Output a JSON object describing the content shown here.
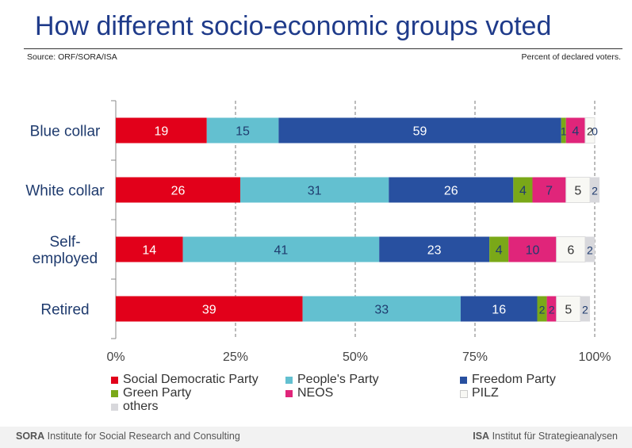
{
  "title": "How different socio-economic groups voted",
  "source": "Source: ORF/SORA/ISA",
  "note": "Percent of declared voters.",
  "footer": {
    "left_org": "SORA",
    "left_text": "Institute for Social Research and Consulting",
    "right_org": "ISA",
    "right_text": "Institut für Strategieanalysen"
  },
  "chart_data": {
    "type": "bar",
    "orientation": "horizontal",
    "stacked": true,
    "categories": [
      "Blue collar",
      "White collar",
      "Self-employed",
      "Retired"
    ],
    "category_lines": [
      [
        "Blue collar"
      ],
      [
        "White collar"
      ],
      [
        "Self-",
        "employed"
      ],
      [
        "Retired"
      ]
    ],
    "xlim": [
      0,
      100
    ],
    "xticks": [
      0,
      25,
      50,
      75,
      100
    ],
    "xtick_labels": [
      "0%",
      "25%",
      "50%",
      "75%",
      "100%"
    ],
    "legend_position": "bottom",
    "series": [
      {
        "name": "Social Democratic Party",
        "color": "#e2001a",
        "label_color": "#ffffff",
        "values": [
          19,
          26,
          14,
          39
        ]
      },
      {
        "name": "People's Party",
        "color": "#63c0d0",
        "label_color": "#1f3b6e",
        "values": [
          15,
          31,
          41,
          33
        ]
      },
      {
        "name": "Freedom Party",
        "color": "#2850a0",
        "label_color": "#ffffff",
        "values": [
          59,
          26,
          23,
          16
        ]
      },
      {
        "name": "Green Party",
        "color": "#7aa818",
        "label_color": "#1f3b6e",
        "values": [
          1,
          4,
          4,
          2
        ]
      },
      {
        "name": "NEOS",
        "color": "#e0257a",
        "label_color": "#1f3b6e",
        "values": [
          4,
          7,
          10,
          2
        ]
      },
      {
        "name": "PILZ",
        "color": "#f8f8f4",
        "label_color": "#333333",
        "values": [
          2,
          5,
          6,
          5
        ]
      },
      {
        "name": "others",
        "color": "#d8d8dc",
        "label_color": "#1f3b6e",
        "values": [
          0,
          2,
          2,
          2
        ]
      }
    ]
  }
}
